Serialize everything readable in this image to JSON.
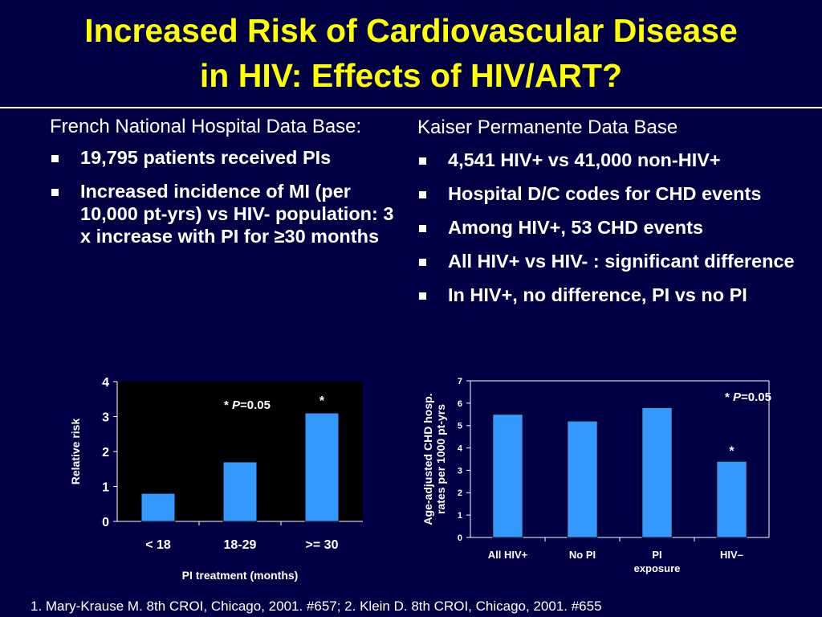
{
  "title": {
    "line1": "Increased Risk of Cardiovascular Disease",
    "line2": "in HIV:  Effects of HIV/ART?"
  },
  "left": {
    "heading": "French National Hospital Data Base:",
    "bullets": [
      "19,795 patients received PIs",
      "Increased incidence of MI (per 10,000 pt-yrs) vs HIV- population: 3 x increase with PI for ≥30 months"
    ]
  },
  "right": {
    "heading": "Kaiser Permanente Data Base",
    "bullets": [
      "4,541 HIV+  vs  41,000 non-HIV+",
      "Hospital D/C codes for CHD events",
      "Among HIV+,  53 CHD events",
      "All HIV+ vs HIV- : significant difference",
      "In HIV+, no difference, PI vs no PI"
    ]
  },
  "colors": {
    "background": "#000044",
    "title": "#ffff00",
    "bar": "#3399ff",
    "plot_bg": "#000000",
    "plot_bg_right": "#000044",
    "text": "#ffffff"
  },
  "chart_data": [
    {
      "type": "bar",
      "categories": [
        "< 18",
        "18-29",
        ">= 30"
      ],
      "values": [
        0.8,
        1.7,
        3.1
      ],
      "xlabel": "PI treatment (months)",
      "ylabel": "Relative risk",
      "ylim": [
        0,
        4
      ],
      "yticks": [
        "0",
        "1",
        "2",
        "3",
        "4"
      ],
      "grid": false,
      "annotations": {
        "note_prefix": "* ",
        "note_p": "P",
        "note_suffix": "=0.05",
        "star": "*",
        "star_category": ">= 30"
      }
    },
    {
      "type": "bar",
      "categories": [
        "All HIV+",
        "No PI",
        "PI exposure",
        "HIV–"
      ],
      "category_lines": [
        [
          "All HIV+"
        ],
        [
          "No PI"
        ],
        [
          "PI",
          "exposure"
        ],
        [
          "HIV–"
        ]
      ],
      "values": [
        5.5,
        5.2,
        5.8,
        3.4
      ],
      "xlabel": "",
      "ylabel_lines": [
        "Age-adjusted CHD hosp.",
        "rates per 1000 pt-yrs"
      ],
      "ylim": [
        0,
        7
      ],
      "yticks": [
        "0",
        "1",
        "2",
        "3",
        "4",
        "5",
        "6",
        "7"
      ],
      "grid": false,
      "annotations": {
        "note_prefix": "* ",
        "note_p": "P",
        "note_suffix": "=0.05",
        "star": "*",
        "star_category": "HIV–"
      }
    }
  ],
  "footnote": "1. Mary-Krause M. 8th CROI, Chicago, 2001. #657; 2. Klein D. 8th CROI, Chicago, 2001. #655"
}
